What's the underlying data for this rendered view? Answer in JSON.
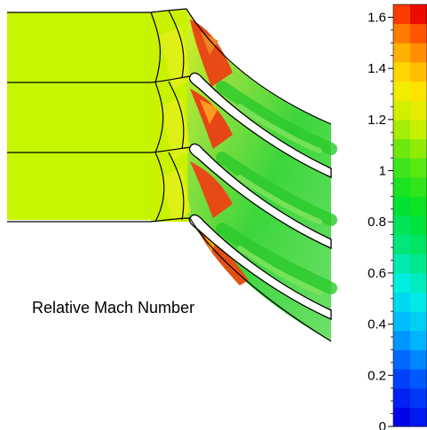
{
  "figure": {
    "caption": "Relative Mach Number"
  },
  "colorbar": {
    "min": 0,
    "max": 1.65,
    "tick_labels": [
      "0",
      "0.2",
      "0.4",
      "0.6",
      "0.8",
      "1",
      "1.2",
      "1.4",
      "1.6"
    ],
    "tick_values": [
      0,
      0.2,
      0.4,
      0.6,
      0.8,
      1.0,
      1.2,
      1.4,
      1.6
    ],
    "band_count": 22
  },
  "colors": {
    "freestream": "#c6f500",
    "shock": "#e64a15",
    "supersonic": "#f0a020",
    "passage": "#35d935",
    "passage_light": "#7be25a",
    "blade": "#ffffff",
    "outline": "#000000"
  }
}
